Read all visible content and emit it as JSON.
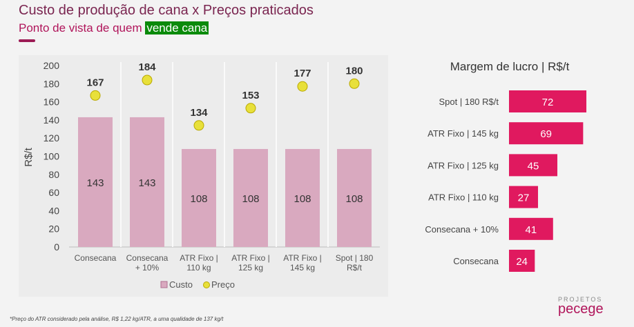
{
  "header": {
    "title": "Custo de produção de cana x Preços praticados",
    "subtitle_prefix": "Ponto de vista de quem ",
    "subtitle_highlight": "vende cana"
  },
  "chart_data": [
    {
      "type": "bar",
      "categories": [
        [
          "Consecana"
        ],
        [
          "Consecana",
          "+ 10%"
        ],
        [
          "ATR Fixo |",
          "110 kg"
        ],
        [
          "ATR Fixo |",
          "125 kg"
        ],
        [
          "ATR Fixo |",
          "145 kg"
        ],
        [
          "Spot | 180",
          "R$/t"
        ]
      ],
      "ylabel": "R$/t",
      "ylim": [
        0,
        200
      ],
      "yticks": [
        0,
        20,
        40,
        60,
        80,
        100,
        120,
        140,
        160,
        180,
        200
      ],
      "series": [
        {
          "name": "Custo",
          "type": "bar",
          "values": [
            143,
            143,
            108,
            108,
            108,
            108
          ],
          "color": "#d9a9bf"
        },
        {
          "name": "Preço",
          "type": "scatter",
          "values": [
            167,
            184,
            134,
            153,
            177,
            180
          ],
          "color": "#e8e03a"
        }
      ],
      "legend": "bottom"
    },
    {
      "type": "bar",
      "orientation": "horizontal",
      "title": "Margem de lucro | R$/t",
      "categories": [
        "Spot | 180 R$/t",
        "ATR Fixo | 145 kg",
        "ATR Fixo | 125 kg",
        "ATR Fixo | 110 kg",
        "Consecana + 10%",
        "Consecana"
      ],
      "values": [
        72,
        69,
        45,
        27,
        41,
        24
      ],
      "color": "#e0195f"
    }
  ],
  "footnote": "*Preço do ATR considerado pela análise, R$ 1,22 kg/ATR, a uma qualidade de 137 kg/t",
  "logo": {
    "line1": "PROJETOS",
    "line2": "pecege"
  }
}
